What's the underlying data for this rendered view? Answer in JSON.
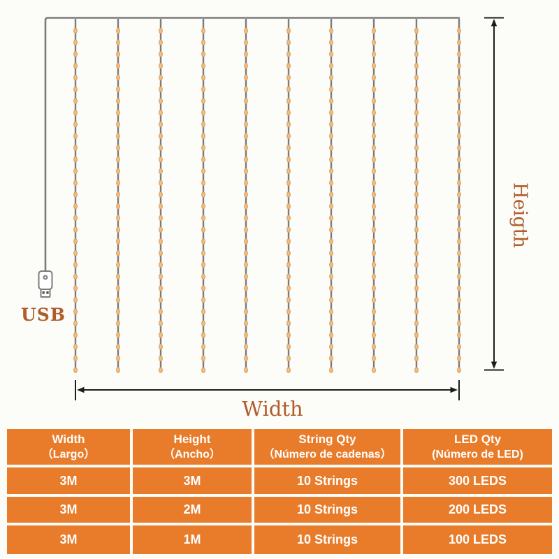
{
  "diagram": {
    "usb_label": "USB",
    "width_label": "Width",
    "height_label": "Heigth",
    "string_count": 10,
    "leds_per_string": 30
  },
  "colors": {
    "wire": "#7b7b7b",
    "bead_fill": "#eebe85",
    "bead_stroke": "#dc9a52",
    "arrow": "#1c1c1c",
    "label": "#af5e2a",
    "table_orange": "#e87c2a",
    "table_text": "#ffffff"
  },
  "table": {
    "headers": [
      {
        "line1": "Width",
        "line2": "（Largo）"
      },
      {
        "line1": "Height",
        "line2": "（Ancho）"
      },
      {
        "line1": "String Qty",
        "line2": "（Número de cadenas）"
      },
      {
        "line1": "LED Qty",
        "line2": "(Número de LED)"
      }
    ],
    "rows": [
      [
        "3M",
        "3M",
        "10 Strings",
        "300 LEDS"
      ],
      [
        "3M",
        "2M",
        "10 Strings",
        "200 LEDS"
      ],
      [
        "3M",
        "1M",
        "10 Strings",
        "100 LEDS"
      ]
    ]
  }
}
